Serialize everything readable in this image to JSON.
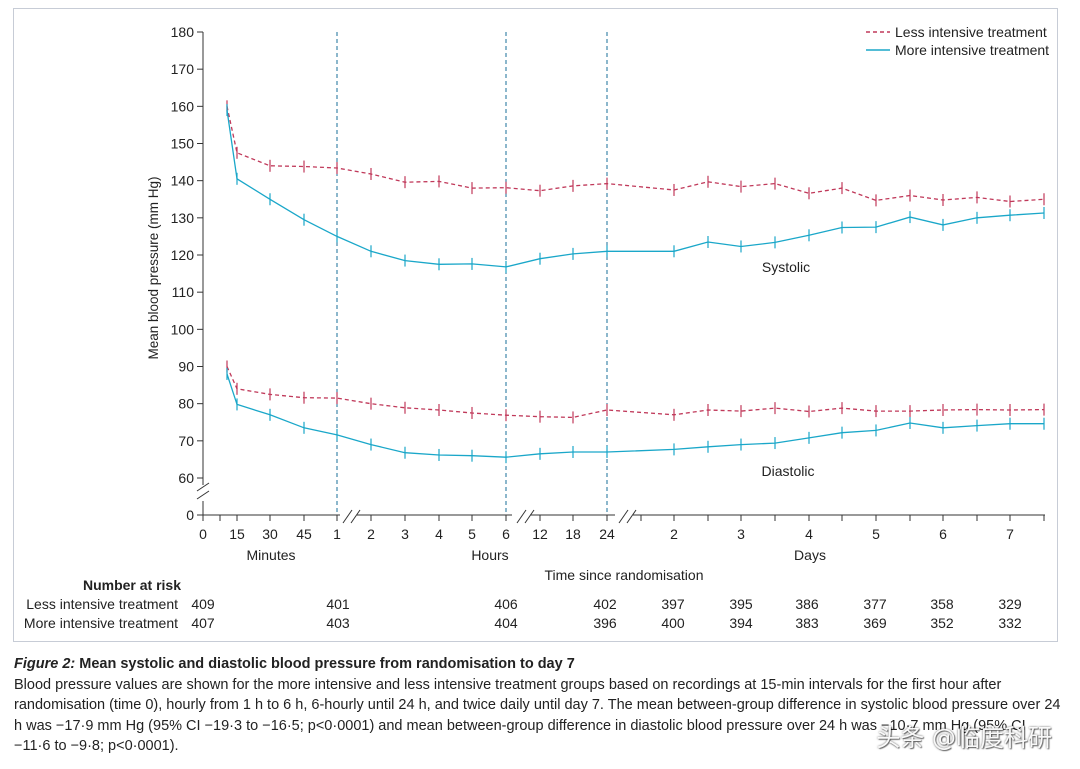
{
  "chart_data": {
    "type": "line",
    "ylabel": "Mean blood pressure (mm Hg)",
    "xlabel": "Time since randomisation",
    "yticks": [
      0,
      60,
      70,
      80,
      90,
      100,
      110,
      120,
      130,
      140,
      150,
      160,
      170,
      180
    ],
    "ylim": [
      0,
      180
    ],
    "x_groups": [
      {
        "label": "Minutes",
        "ticks": [
          "0",
          "15",
          "30",
          "45"
        ]
      },
      {
        "label": "Hours",
        "ticks": [
          "1",
          "2",
          "3",
          "4",
          "5",
          "6",
          "12",
          "18",
          "24"
        ]
      },
      {
        "label": "Days",
        "ticks": [
          "2",
          "3",
          "4",
          "5",
          "6",
          "7"
        ]
      }
    ],
    "series": [
      {
        "name": "Less intensive treatment",
        "measure": "Systolic",
        "color": "#c0395a",
        "style": "dashed",
        "x": [
          "10 min",
          "15 min",
          "30 min",
          "45 min",
          "1 h",
          "2 h",
          "3 h",
          "4 h",
          "5 h",
          "6 h",
          "12 h",
          "18 h",
          "24 h",
          "day 2",
          "day 2.5",
          "day 3",
          "day 3.5",
          "day 4",
          "day 4.5",
          "day 5",
          "day 5.5",
          "day 6",
          "day 6.5",
          "day 7",
          "day 7.5"
        ],
        "values": [
          160,
          147.5,
          144,
          143.8,
          143.4,
          141.8,
          139.6,
          139.8,
          138,
          138.1,
          137.3,
          138.6,
          139.2,
          137.5,
          139.7,
          138.4,
          139.2,
          136.6,
          138,
          134.7,
          136,
          134.8,
          135.5,
          134.4,
          135
        ]
      },
      {
        "name": "More intensive treatment",
        "measure": "Systolic",
        "color": "#1aa7c9",
        "style": "solid",
        "x": [
          "10 min",
          "15 min",
          "30 min",
          "45 min",
          "1 h",
          "2 h",
          "3 h",
          "4 h",
          "5 h",
          "6 h",
          "12 h",
          "18 h",
          "24 h",
          "day 2",
          "day 2.5",
          "day 3",
          "day 3.5",
          "day 4",
          "day 4.5",
          "day 5",
          "day 5.5",
          "day 6",
          "day 6.5",
          "day 7",
          "day 7.5"
        ],
        "values": [
          159,
          140.5,
          135,
          129.5,
          125,
          121,
          118.5,
          117.5,
          117.6,
          116.8,
          119,
          120.3,
          121,
          121,
          123.5,
          122.3,
          123.4,
          125.3,
          127.4,
          127.5,
          130.2,
          128.1,
          130,
          130.7,
          131.3
        ]
      },
      {
        "name": "Less intensive treatment",
        "measure": "Diastolic",
        "color": "#c0395a",
        "style": "dashed",
        "x": [
          "10 min",
          "15 min",
          "30 min",
          "45 min",
          "1 h",
          "2 h",
          "3 h",
          "4 h",
          "5 h",
          "6 h",
          "12 h",
          "18 h",
          "24 h",
          "day 2",
          "day 2.5",
          "day 3",
          "day 3.5",
          "day 4",
          "day 4.5",
          "day 5",
          "day 5.5",
          "day 6",
          "day 6.5",
          "day 7",
          "day 7.5"
        ],
        "values": [
          90,
          84,
          82.5,
          81.6,
          81.5,
          80,
          78.9,
          78.3,
          77.5,
          76.9,
          76.5,
          76.3,
          78.3,
          77,
          78.3,
          78,
          78.8,
          77.9,
          78.8,
          78,
          78,
          78.3,
          78.4,
          78.3,
          78.4
        ]
      },
      {
        "name": "More intensive treatment",
        "measure": "Diastolic",
        "color": "#1aa7c9",
        "style": "solid",
        "x": [
          "10 min",
          "15 min",
          "30 min",
          "45 min",
          "1 h",
          "2 h",
          "3 h",
          "4 h",
          "5 h",
          "6 h",
          "12 h",
          "18 h",
          "24 h",
          "day 2",
          "day 2.5",
          "day 3",
          "day 3.5",
          "day 4",
          "day 4.5",
          "day 5",
          "day 5.5",
          "day 6",
          "day 6.5",
          "day 7",
          "day 7.5"
        ],
        "values": [
          88,
          79.8,
          77,
          73.5,
          71.6,
          69,
          66.8,
          66.2,
          66,
          65.6,
          66.5,
          67,
          67,
          67.7,
          68.4,
          69,
          69.4,
          70.8,
          72.2,
          72.8,
          74.8,
          73.5,
          74.1,
          74.6,
          74.6
        ]
      }
    ],
    "annotations": [
      "Systolic",
      "Diastolic"
    ],
    "vertical_dashed_lines_at": [
      "1 h",
      "6 h",
      "24 h"
    ],
    "legend_position": "top-right",
    "grid": false
  },
  "risk_table": {
    "title": "Number at risk",
    "rows": [
      {
        "label": "Less intensive treatment",
        "values": [
          "409",
          "401",
          "406",
          "402",
          "397",
          "395",
          "386",
          "377",
          "358",
          "329"
        ]
      },
      {
        "label": "More intensive treatment",
        "values": [
          "407",
          "403",
          "404",
          "396",
          "400",
          "394",
          "383",
          "369",
          "352",
          "332"
        ]
      }
    ]
  },
  "caption": {
    "label": "Figure 2:",
    "title": " Mean systolic and diastolic blood pressure from randomisation to day 7",
    "text": "Blood pressure values are shown for the more intensive and less intensive treatment groups based on recordings at 15-min intervals for the first hour after randomisation (time 0), hourly from 1 h to 6 h, 6-hourly until 24 h, and twice daily until day 7. The mean between-group difference in systolic blood pressure over 24 h was −17·9 mm Hg (95% CI −19·3 to −16·5; p<0·0001) and mean between-group difference in diastolic blood pressure over 24 h was −10·7 mm Hg (95% CI −11·6 to −9·8; p<0·0001)."
  },
  "watermark": "头条 @临度科研",
  "colors": {
    "less_intensive": "#c0395a",
    "more_intensive": "#1aa7c9",
    "frame": "#c7ccd6",
    "axis": "#333333"
  }
}
